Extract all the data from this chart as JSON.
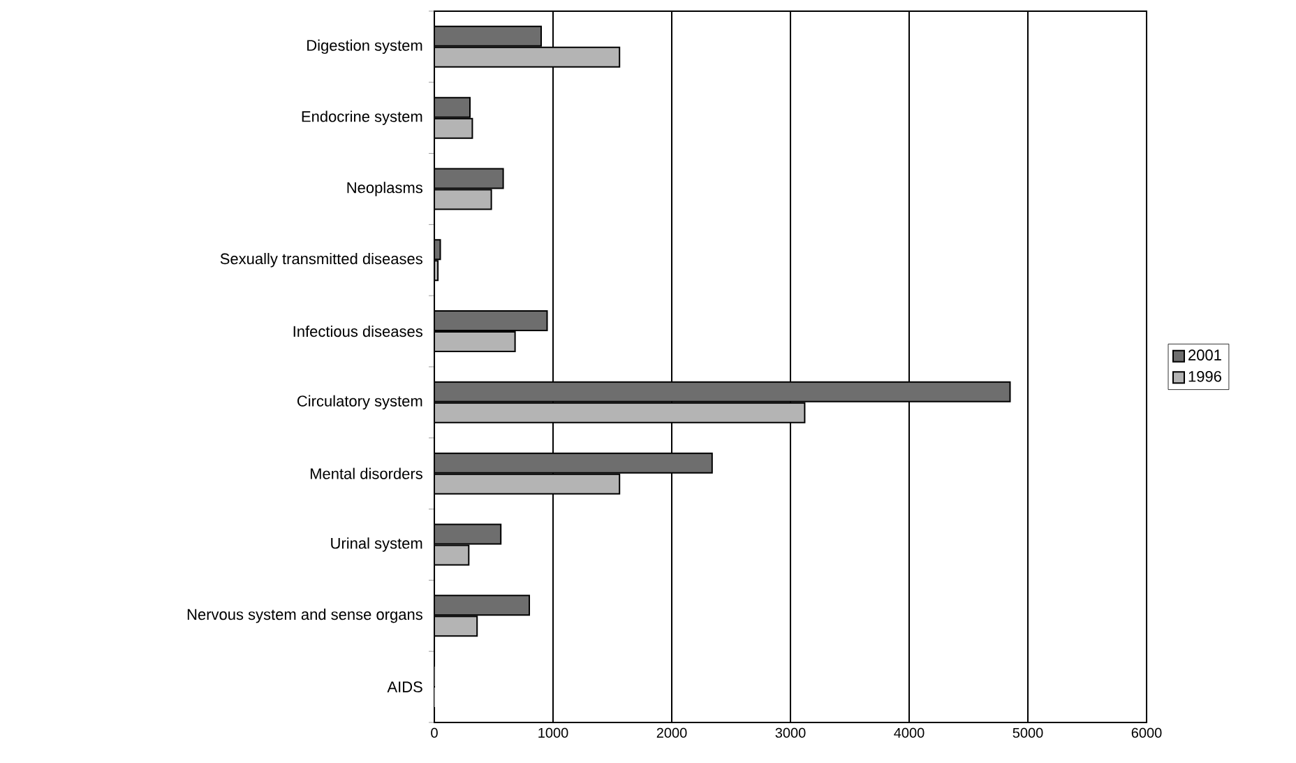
{
  "chart_data": {
    "type": "bar",
    "orientation": "horizontal",
    "categories": [
      "Digestion system",
      "Endocrine system",
      "Neoplasms",
      "Sexually transmitted diseases",
      "Infectious diseases",
      "Circulatory system",
      "Mental disorders",
      "Urinal system",
      "Nervous system and sense organs",
      "AIDS"
    ],
    "series": [
      {
        "name": "2001",
        "color": "#6e6e6e",
        "values": [
          900,
          300,
          580,
          50,
          950,
          4850,
          2340,
          560,
          800,
          0
        ]
      },
      {
        "name": "1996",
        "color": "#b4b4b4",
        "values": [
          1560,
          320,
          480,
          30,
          680,
          3120,
          1560,
          290,
          360,
          0
        ]
      }
    ],
    "xlim": [
      0,
      6000
    ],
    "xticks": [
      0,
      1000,
      2000,
      3000,
      4000,
      5000,
      6000
    ],
    "grid": "x",
    "legend": "right"
  }
}
